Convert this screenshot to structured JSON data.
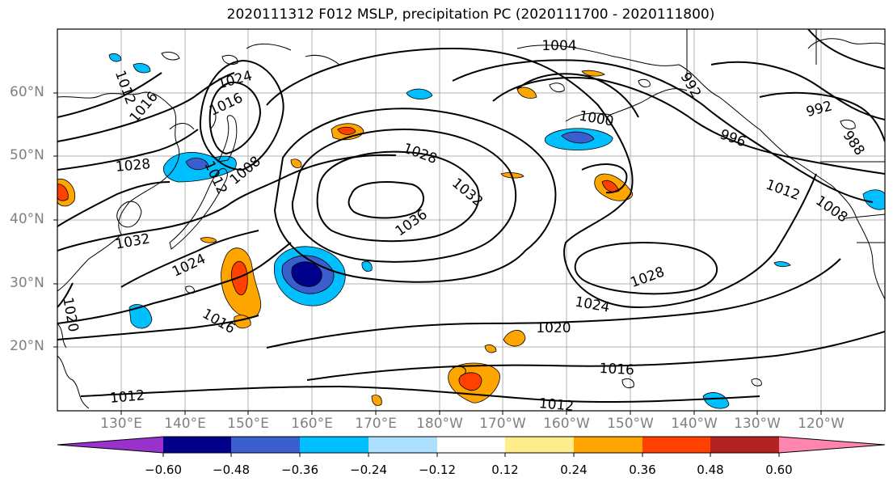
{
  "title": "2020111312 F012 MSLP, precipitation PC (2020111700 - 2020111800)",
  "lat_labels": [
    "60°N",
    "50°N",
    "40°N",
    "30°N",
    "20°N"
  ],
  "lon_labels": [
    "130°E",
    "140°E",
    "150°E",
    "160°E",
    "170°E",
    "180°W",
    "170°W",
    "160°W",
    "150°W",
    "140°W",
    "130°W",
    "120°W"
  ],
  "isobar_labels": [
    "1004",
    "1024",
    "1016",
    "1012",
    "1016",
    "1028",
    "1008",
    "1012",
    "1028",
    "1032",
    "1036",
    "1032",
    "1024",
    "1016",
    "1000",
    "992",
    "996",
    "992",
    "988",
    "1012",
    "1008",
    "1028",
    "1024",
    "1020",
    "1016",
    "1012",
    "1012",
    "1020"
  ],
  "colorbar": {
    "colors": [
      "#9932CC",
      "#00008B",
      "#3A5ECC",
      "#00BFFF",
      "#ADDFFF",
      "#FFFFFF",
      "#FFEC8B",
      "#FFA500",
      "#FF4000",
      "#B22222",
      "#FF85AE"
    ],
    "tick_labels": [
      "−0.60",
      "−0.48",
      "−0.36",
      "−0.24",
      "−0.12",
      "0.12",
      "0.24",
      "0.36",
      "0.48",
      "0.60"
    ]
  }
}
